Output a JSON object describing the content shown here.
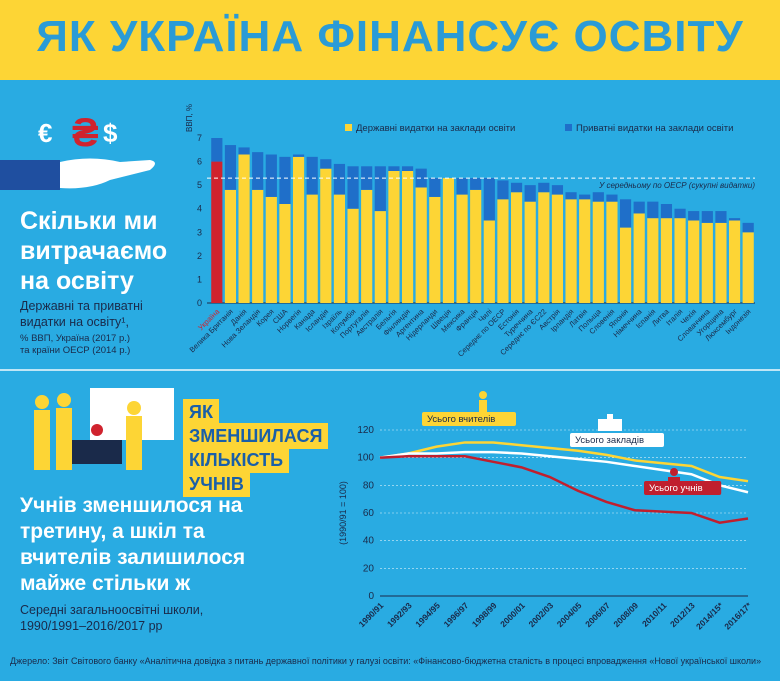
{
  "title": "ЯК УКРАЇНА ФІНАНСУЄ ОСВІТУ",
  "section1": {
    "heading_lines": [
      "Скільки ми",
      "витрачаємо",
      "на освіту"
    ],
    "sub_lines": [
      "Державні та приватні",
      "видатки на освіту¹,"
    ],
    "small_lines": [
      "% ВВП, Україна (2017 р.)",
      "та країни ОЕСР (2014 р.)"
    ]
  },
  "section2": {
    "badge_lines": [
      "ЯК",
      "ЗМЕНШИЛАСЯ",
      "КІЛЬКІСТЬ",
      "УЧНІВ"
    ],
    "heading_lines": [
      "Учнів зменшилося на",
      "третину, а шкіл та",
      "вчителів залишилося",
      "майже стільки ж"
    ],
    "sub_lines": [
      "Середні загальноосвітні школи,",
      "1990/1991–2016/2017 рр"
    ]
  },
  "footer": "Джерело: Звіт Світового банку «Аналітична довідка з питань державної політики у галузі освіти: «Фінансово-бюджетна сталість в процесі впровадження «Нової української школи»",
  "colors": {
    "public": "#FDD535",
    "private": "#1F6FC9",
    "ukraine": "#D0232E",
    "accent": "#2A9BD6"
  },
  "chart_data": [
    {
      "type": "bar",
      "ylabel": "ВВП, %",
      "ylim": [
        0,
        7
      ],
      "yticks": [
        0,
        1,
        2,
        3,
        4,
        5,
        6,
        7
      ],
      "legend": [
        "Державні видатки на заклади освіти",
        "Приватні видатки на заклади освіти"
      ],
      "average_label": "У середньому по ОЕСР (сукупні видатки)",
      "average": 5.3,
      "categories": [
        "Україна",
        "Велика Британія",
        "Данія",
        "Нова Зеландія",
        "Корея",
        "США",
        "Норвегія",
        "Канада",
        "Ісландія",
        "Ізраїль",
        "Колумбія",
        "Португалія",
        "Австралія",
        "Бельгія",
        "Фінляндія",
        "Аргентина",
        "Нідерланди",
        "Швеція",
        "Мексика",
        "Франція",
        "Чилі",
        "Середнє по ОЕСР",
        "Естонія",
        "Туреччина",
        "Середнє по ЄС22",
        "Австрія",
        "Ірландія",
        "Латвія",
        "Польща",
        "Словенія",
        "Японія",
        "Німеччина",
        "Іспанія",
        "Литва",
        "Італія",
        "Чехія",
        "Словаччина",
        "Угорщина",
        "Люксембург",
        "Індонезія"
      ],
      "series": [
        {
          "name": "Державні видатки на заклади освіти",
          "values": [
            6.0,
            4.8,
            6.3,
            4.8,
            4.5,
            4.2,
            6.2,
            4.6,
            5.7,
            4.6,
            4.0,
            4.8,
            3.9,
            5.6,
            5.6,
            4.9,
            4.5,
            5.3,
            4.6,
            4.8,
            3.5,
            4.4,
            4.7,
            4.3,
            4.7,
            4.6,
            4.4,
            4.4,
            4.3,
            4.3,
            3.2,
            3.8,
            3.6,
            3.6,
            3.6,
            3.5,
            3.4,
            3.4,
            3.5,
            3.0
          ]
        },
        {
          "name": "Приватні видатки на заклади освіти",
          "values": [
            1.0,
            1.9,
            0.3,
            1.6,
            1.8,
            2.0,
            0.1,
            1.6,
            0.4,
            1.3,
            1.8,
            1.0,
            1.9,
            0.2,
            0.2,
            0.8,
            0.8,
            0.0,
            0.7,
            0.5,
            1.8,
            0.8,
            0.4,
            0.7,
            0.4,
            0.4,
            0.3,
            0.2,
            0.4,
            0.3,
            1.2,
            0.5,
            0.7,
            0.6,
            0.4,
            0.4,
            0.5,
            0.5,
            0.1,
            0.4
          ]
        }
      ]
    },
    {
      "type": "line",
      "ylabel": "(1990/91 = 100)",
      "ylim": [
        0,
        120
      ],
      "yticks": [
        0,
        20,
        40,
        60,
        80,
        100,
        120
      ],
      "x": [
        "1990/91",
        "1992/93",
        "1994/95",
        "1996/97",
        "1998/99",
        "2000/01",
        "2002/03",
        "2004/05",
        "2006/07",
        "2008/09",
        "2010/11",
        "2012/13",
        "2014/15*",
        "2016/17*"
      ],
      "series": [
        {
          "name": "Усього вчителів",
          "values": [
            100,
            103,
            108,
            111,
            111,
            109,
            107,
            105,
            102,
            98,
            96,
            94,
            86,
            83
          ]
        },
        {
          "name": "Усього закладів",
          "values": [
            100,
            103,
            103,
            104,
            104,
            103,
            101,
            99,
            97,
            94,
            91,
            88,
            80,
            75
          ]
        },
        {
          "name": "Усього учнів",
          "values": [
            100,
            101,
            101,
            101,
            97,
            93,
            86,
            76,
            68,
            62,
            61,
            60,
            53,
            56
          ]
        }
      ]
    }
  ]
}
